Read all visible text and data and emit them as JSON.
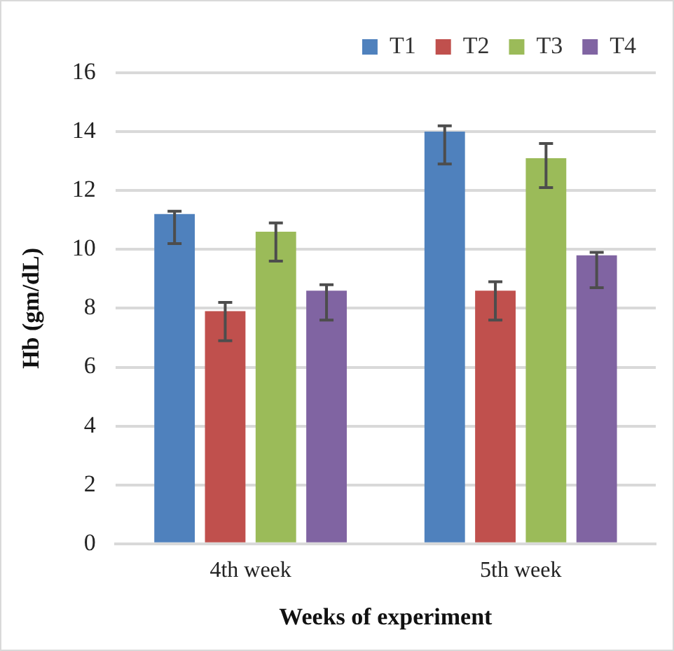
{
  "chart_data": {
    "type": "bar",
    "xlabel": "Weeks of experiment",
    "ylabel": "Hb (gm/dL)",
    "categories": [
      "4th week",
      "5th week"
    ],
    "series": [
      {
        "name": "T1",
        "color": "#4f81bd",
        "values": [
          11.2,
          14.0
        ],
        "errors": [
          [
            10.2,
            11.3
          ],
          [
            12.9,
            14.2
          ]
        ]
      },
      {
        "name": "T2",
        "color": "#c0504d",
        "values": [
          7.9,
          8.6
        ],
        "errors": [
          [
            6.9,
            8.2
          ],
          [
            7.6,
            8.9
          ]
        ]
      },
      {
        "name": "T3",
        "color": "#9bbb59",
        "values": [
          10.6,
          13.1
        ],
        "errors": [
          [
            9.6,
            10.9
          ],
          [
            12.1,
            13.6
          ]
        ]
      },
      {
        "name": "T4",
        "color": "#8064a2",
        "values": [
          8.6,
          9.8
        ],
        "errors": [
          [
            7.6,
            8.8
          ],
          [
            8.7,
            9.9
          ]
        ]
      }
    ],
    "ylim": [
      0,
      16
    ],
    "yticks": [
      0,
      2,
      4,
      6,
      8,
      10,
      12,
      14,
      16
    ],
    "grid": "y",
    "legend": "top right"
  }
}
